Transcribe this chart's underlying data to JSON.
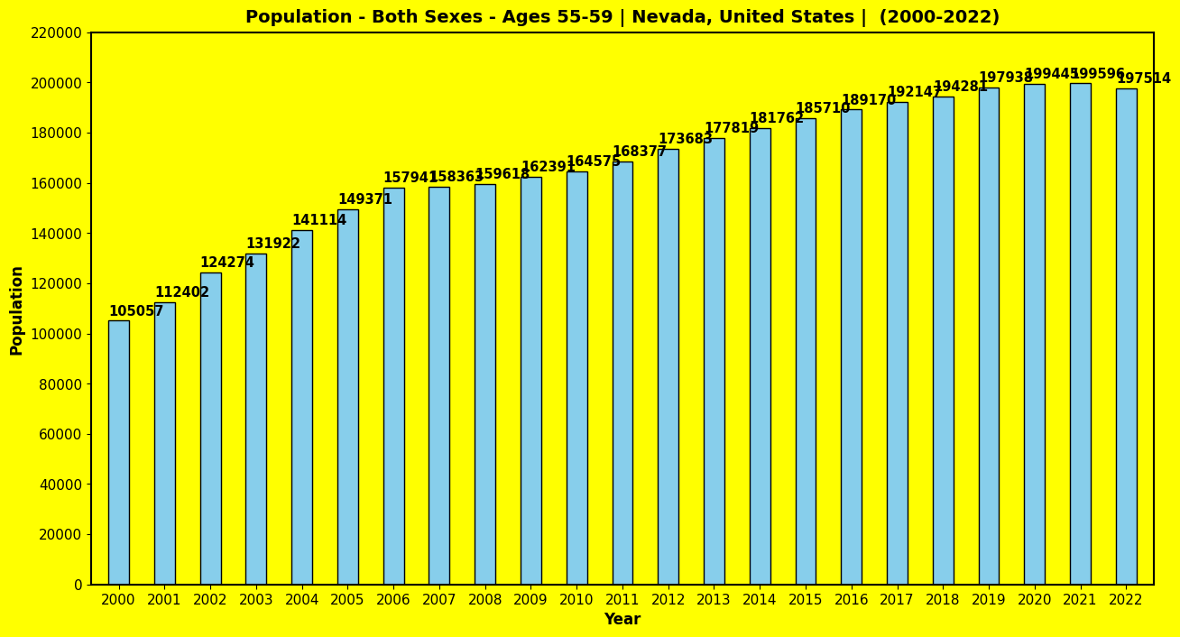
{
  "title": "Population - Both Sexes - Ages 55-59 | Nevada, United States |  (2000-2022)",
  "xlabel": "Year",
  "ylabel": "Population",
  "years": [
    2000,
    2001,
    2002,
    2003,
    2004,
    2005,
    2006,
    2007,
    2008,
    2009,
    2010,
    2011,
    2012,
    2013,
    2014,
    2015,
    2016,
    2017,
    2018,
    2019,
    2020,
    2021,
    2022
  ],
  "values": [
    105057,
    112402,
    124274,
    131922,
    141114,
    149371,
    157941,
    158363,
    159618,
    162391,
    164575,
    168377,
    173683,
    177819,
    181762,
    185710,
    189170,
    192147,
    194281,
    197938,
    199445,
    199596,
    197514
  ],
  "bar_color": "#87CEEB",
  "bar_edge_color": "#000000",
  "background_color": "#FFFF00",
  "text_color": "#000000",
  "title_color": "#000000",
  "ylim": [
    0,
    220000
  ],
  "yticks": [
    0,
    20000,
    40000,
    60000,
    80000,
    100000,
    120000,
    140000,
    160000,
    180000,
    200000,
    220000
  ],
  "title_fontsize": 14,
  "label_fontsize": 12,
  "tick_fontsize": 11,
  "value_fontsize": 10.5,
  "bar_width": 0.45
}
